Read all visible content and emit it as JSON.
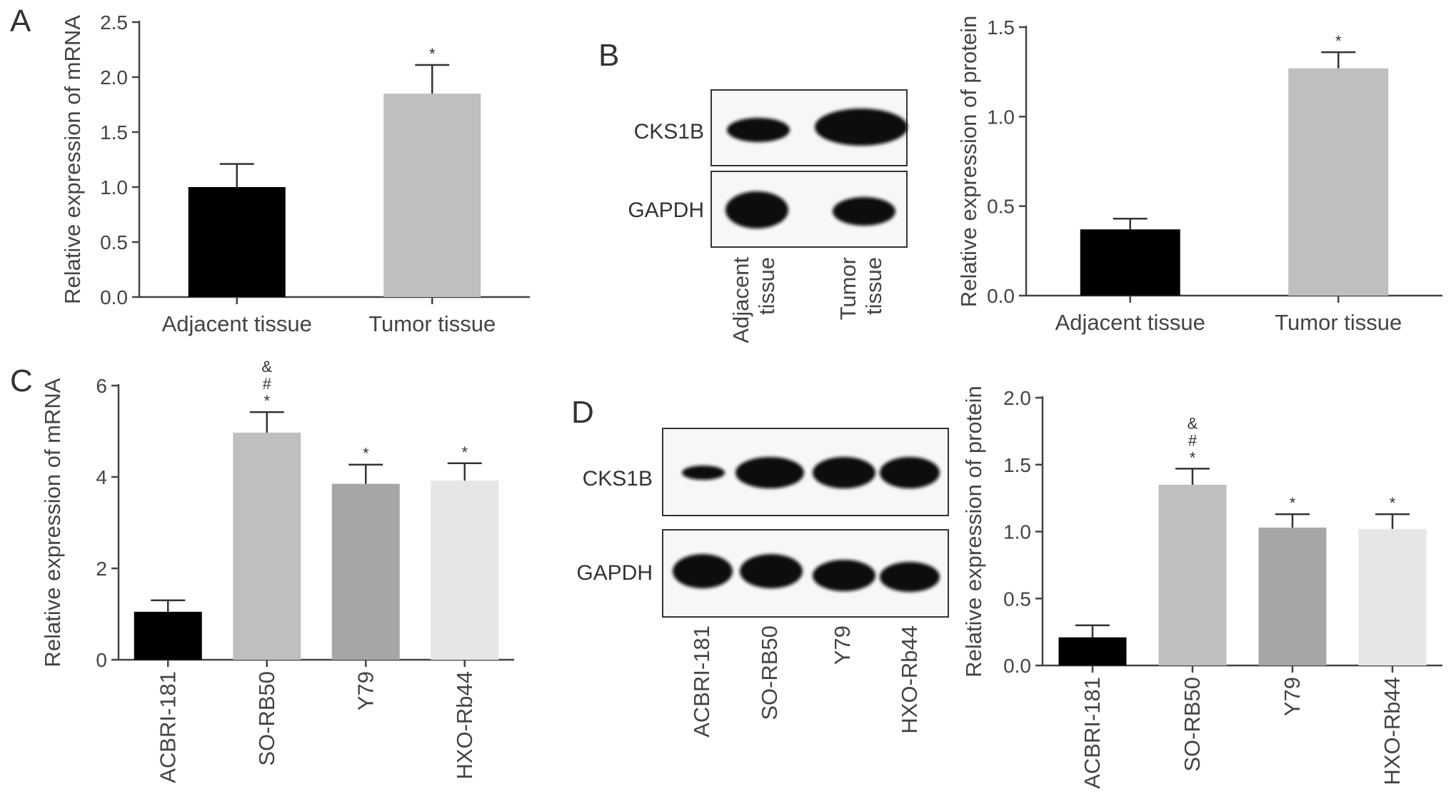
{
  "chart_data": [
    {
      "panel": "A",
      "type": "bar",
      "ylabel": "Relative expression of mRNA",
      "ylim": [
        0,
        2.5
      ],
      "yticks": [
        "0.0",
        "0.5",
        "1.0",
        "1.5",
        "2.0",
        "2.5"
      ],
      "categories": [
        "Adjacent tissue",
        "Tumor tissue"
      ],
      "values": [
        1.0,
        1.85
      ],
      "errors": [
        0.21,
        0.26
      ],
      "colors": [
        "#000000",
        "#bfbfbf"
      ],
      "annotations": [
        "",
        "*"
      ]
    },
    {
      "panel": "B",
      "type": "bar",
      "ylabel": "Relative expression of protein",
      "ylim": [
        0,
        1.5
      ],
      "yticks": [
        "0.0",
        "0.5",
        "1.0",
        "1.5"
      ],
      "categories": [
        "Adjacent tissue",
        "Tumor tissue"
      ],
      "values": [
        0.37,
        1.27
      ],
      "errors": [
        0.06,
        0.09
      ],
      "colors": [
        "#000000",
        "#bfbfbf"
      ],
      "annotations": [
        "",
        "*"
      ]
    },
    {
      "panel": "C",
      "type": "bar",
      "ylabel": "Relative expression of mRNA",
      "ylim": [
        0,
        6
      ],
      "yticks": [
        "0",
        "2",
        "4",
        "6"
      ],
      "categories": [
        "ACBRI-181",
        "SO-RB50",
        "Y79",
        "HXO-Rb44"
      ],
      "values": [
        1.05,
        4.97,
        3.85,
        3.92
      ],
      "errors": [
        0.25,
        0.45,
        0.42,
        0.38
      ],
      "colors": [
        "#000000",
        "#bfbfbf",
        "#a6a6a6",
        "#e6e6e6"
      ],
      "annotations": [
        "",
        "&\n#\n*",
        "*",
        "*"
      ]
    },
    {
      "panel": "D",
      "type": "bar",
      "ylabel": "Relative expression of protein",
      "ylim": [
        0,
        2.0
      ],
      "yticks": [
        "0.0",
        "0.5",
        "1.0",
        "1.5",
        "2.0"
      ],
      "categories": [
        "ACBRI-181",
        "SO-RB50",
        "Y79",
        "HXO-Rb44"
      ],
      "values": [
        0.21,
        1.35,
        1.03,
        1.02
      ],
      "errors": [
        0.09,
        0.12,
        0.1,
        0.11
      ],
      "colors": [
        "#000000",
        "#bfbfbf",
        "#a6a6a6",
        "#e6e6e6"
      ],
      "annotations": [
        "",
        "&\n#\n*",
        "*",
        "*"
      ]
    }
  ],
  "blots": {
    "B": {
      "rows": [
        "CKS1B",
        "GAPDH"
      ],
      "lanes": [
        "Adjacent\ntissue",
        "Tumor\ntissue"
      ]
    },
    "D": {
      "rows": [
        "CKS1B",
        "GAPDH"
      ],
      "lanes": [
        "ACBRI-181",
        "SO-RB50",
        "Y79",
        "HXO-Rb44"
      ]
    }
  },
  "panel_labels": [
    "A",
    "B",
    "C",
    "D"
  ]
}
